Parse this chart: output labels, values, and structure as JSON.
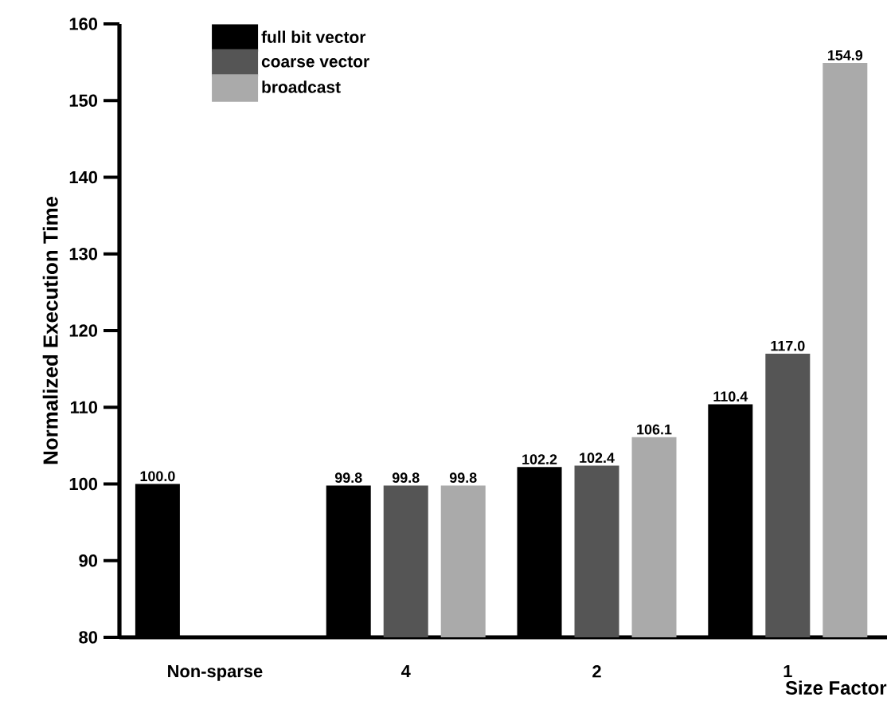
{
  "chart_data": {
    "type": "bar",
    "ylabel": "Normalized Execution Time",
    "xlabel": "Size Factor",
    "categories": [
      "Non-sparse",
      "4",
      "2",
      "1"
    ],
    "series": [
      {
        "name": "full bit vector",
        "color": "#000000",
        "values": [
          100.0,
          99.8,
          102.2,
          110.4
        ],
        "value_labels": [
          "100.0",
          "99.8",
          "102.2",
          "110.4"
        ]
      },
      {
        "name": "coarse vector",
        "color": "#555555",
        "values": [
          null,
          99.8,
          102.4,
          117.0
        ],
        "value_labels": [
          null,
          "99.8",
          "102.4",
          "117.0"
        ]
      },
      {
        "name": "broadcast",
        "color": "#aaaaaa",
        "values": [
          null,
          99.8,
          106.1,
          154.9
        ],
        "value_labels": [
          null,
          "99.8",
          "106.1",
          "154.9"
        ]
      }
    ],
    "ylim": [
      80,
      160
    ],
    "yticks": [
      80,
      90,
      100,
      110,
      120,
      130,
      140,
      150,
      160
    ],
    "legend": "top left",
    "grid": false
  }
}
